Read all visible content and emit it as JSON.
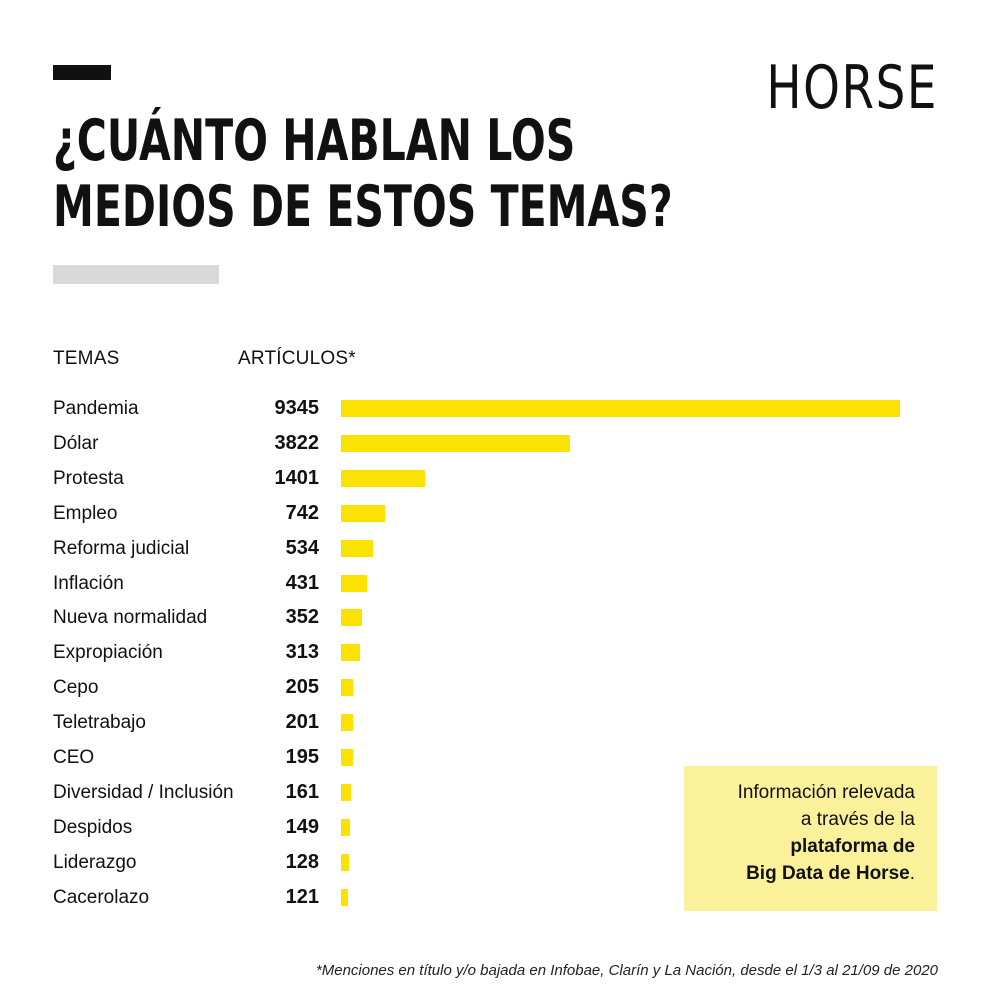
{
  "brand": "HORSE",
  "colors": {
    "bar": "#fbe200",
    "box": "#fcf19b",
    "text": "#111111",
    "accent_grey": "#d9d9d9"
  },
  "chart_data": {
    "type": "bar",
    "orientation": "horizontal",
    "title": "¿CUÁNTO HABLAN LOS MEDIOS DE ESTOS TEMAS?",
    "title_lines": [
      "¿CUÁNTO HABLAN LOS",
      "MEDIOS DE ESTOS TEMAS?"
    ],
    "column_headers": {
      "categories": "TEMAS",
      "values": "ARTÍCULOS*"
    },
    "categories": [
      "Pandemia",
      "Dólar",
      "Protesta",
      "Empleo",
      "Reforma judicial",
      "Inflación",
      "Nueva normalidad",
      "Expropiación",
      "Cepo",
      "Teletrabajo",
      "CEO",
      "Diversidad / Inclusión",
      "Despidos",
      "Liderazgo",
      "Cacerolazo"
    ],
    "values": [
      9345,
      3822,
      1401,
      742,
      534,
      431,
      352,
      313,
      205,
      201,
      195,
      161,
      149,
      128,
      121
    ],
    "value_labels": [
      "9345",
      "3822",
      "1401",
      "742",
      "534",
      "431",
      "352",
      "313",
      "205",
      "201",
      "195",
      "161",
      "149",
      "128",
      "121"
    ],
    "grid": false,
    "legend": "none"
  },
  "info_box": {
    "line1": "Información relevada",
    "line2": "a través de la",
    "line3": "plataforma de",
    "line4_bold": "Big Data de Horse",
    "line4_tail": "."
  },
  "footnote": "*Menciones en título y/o bajada en  Infobae, Clarín y La Nación, desde el 1/3 al 21/09 de 2020"
}
